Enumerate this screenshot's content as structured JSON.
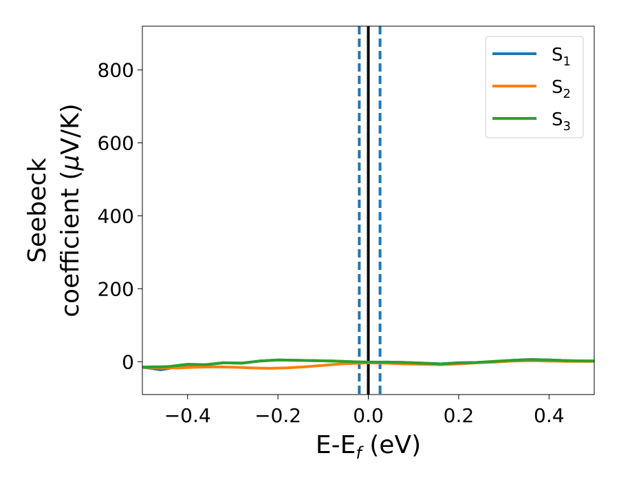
{
  "chart_data": {
    "type": "line",
    "xlabel": "E-E",
    "xlabel_sub": "f",
    "xlabel_unit": " (eV)",
    "ylabel_line1": "Seebeck",
    "ylabel_line2": "coefficient  (",
    "ylabel_mu": "μ",
    "ylabel_unit": "V/K)",
    "xlim": [
      -0.5,
      0.5
    ],
    "ylim": [
      -90,
      920
    ],
    "xticks": [
      -0.4,
      -0.2,
      0.0,
      0.2,
      0.4
    ],
    "xtick_labels": [
      "−0.4",
      "−0.2",
      "0.0",
      "0.2",
      "0.4"
    ],
    "yticks": [
      0,
      200,
      400,
      600,
      800
    ],
    "ytick_labels": [
      "0",
      "200",
      "400",
      "600",
      "800"
    ],
    "grid": false,
    "legend_position": "top-right",
    "vlines": [
      {
        "x": 0.0,
        "color": "#000000",
        "style": "solid"
      },
      {
        "x": -0.02,
        "color": "#1f77b4",
        "style": "dashed"
      },
      {
        "x": 0.026,
        "color": "#1f77b4",
        "style": "dashed"
      }
    ],
    "series": [
      {
        "name": "S",
        "sub": "1",
        "color": "#1f77b4",
        "x": [
          -0.5,
          -0.48,
          -0.46,
          -0.44,
          -0.42,
          -0.4,
          -0.36,
          -0.32,
          -0.28,
          -0.24,
          -0.2,
          -0.16,
          -0.12,
          -0.08,
          -0.04,
          0.0,
          0.04,
          0.08,
          0.12,
          0.16,
          0.2,
          0.24,
          0.28,
          0.32,
          0.36,
          0.4,
          0.44,
          0.48,
          0.5
        ],
        "y": [
          -15,
          -18,
          -22,
          -18,
          -10,
          -8,
          -8,
          -3,
          -4,
          2,
          5,
          4,
          3,
          2,
          0,
          -2,
          -1,
          -2,
          -4,
          -6,
          -3,
          -2,
          0,
          4,
          6,
          5,
          3,
          2,
          2
        ]
      },
      {
        "name": "S",
        "sub": "2",
        "color": "#ff7f0e",
        "x": [
          -0.5,
          -0.46,
          -0.42,
          -0.38,
          -0.34,
          -0.3,
          -0.26,
          -0.22,
          -0.18,
          -0.14,
          -0.1,
          -0.06,
          -0.02,
          0.0,
          0.04,
          0.08,
          0.12,
          0.16,
          0.2,
          0.24,
          0.28,
          0.32,
          0.36,
          0.4,
          0.44,
          0.48,
          0.5
        ],
        "y": [
          -15,
          -17,
          -17,
          -15,
          -14,
          -15,
          -17,
          -18,
          -17,
          -14,
          -10,
          -6,
          -4,
          -3,
          -4,
          -6,
          -7,
          -8,
          -6,
          -3,
          -1,
          2,
          3,
          2,
          1,
          1,
          1
        ]
      },
      {
        "name": "S",
        "sub": "3",
        "color": "#2ca02c",
        "x": [
          -0.5,
          -0.48,
          -0.46,
          -0.44,
          -0.42,
          -0.4,
          -0.36,
          -0.32,
          -0.28,
          -0.24,
          -0.2,
          -0.16,
          -0.12,
          -0.08,
          -0.04,
          0.0,
          0.04,
          0.08,
          0.12,
          0.16,
          0.2,
          0.24,
          0.28,
          0.32,
          0.36,
          0.4,
          0.44,
          0.48,
          0.5
        ],
        "y": [
          -15,
          -14,
          -14,
          -13,
          -10,
          -7,
          -8,
          -3,
          -4,
          2,
          5,
          4,
          3,
          2,
          0,
          -1,
          -1,
          -2,
          -4,
          -6,
          -3,
          -2,
          1,
          4,
          6,
          5,
          3,
          2,
          2
        ]
      }
    ]
  }
}
